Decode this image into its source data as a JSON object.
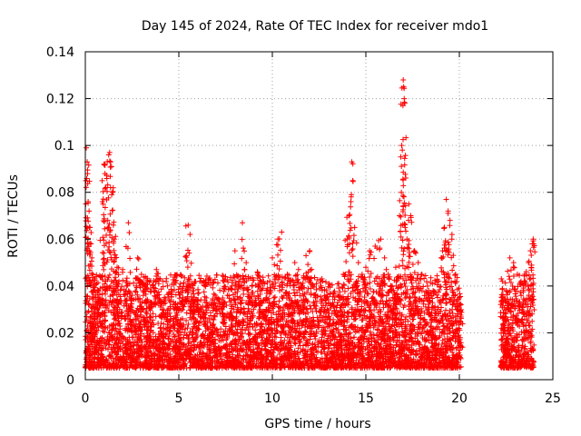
{
  "chart_data": {
    "type": "scatter",
    "title": "Day 145 of 2024, Rate Of TEC Index for receiver mdo1",
    "xlabel": "GPS time / hours",
    "ylabel": "ROTI / TECUs",
    "xlim": [
      0,
      25
    ],
    "ylim": [
      0,
      0.14
    ],
    "xticks": [
      "0",
      "5",
      "10",
      "15",
      "20",
      "25"
    ],
    "yticks": [
      "0",
      "0.02",
      "0.04",
      "0.06",
      "0.08",
      "0.1",
      "0.12",
      "0.14"
    ],
    "xtick_values": [
      0,
      5,
      10,
      15,
      20,
      25
    ],
    "ytick_values": [
      0,
      0.02,
      0.04,
      0.06,
      0.08,
      0.1,
      0.12,
      0.14
    ],
    "grid": true,
    "marker": "plus",
    "color": "#ff0000",
    "series": [
      {
        "name": "ROTI",
        "points": [
          [
            0.05,
            0.099
          ],
          [
            0.1,
            0.093
          ],
          [
            0.12,
            0.088
          ],
          [
            0.15,
            0.076
          ],
          [
            0.2,
            0.072
          ],
          [
            0.25,
            0.065
          ],
          [
            0.3,
            0.058
          ],
          [
            0.35,
            0.052
          ],
          [
            0.4,
            0.045
          ],
          [
            0.45,
            0.035
          ],
          [
            0.5,
            0.028
          ],
          [
            0.6,
            0.041
          ],
          [
            0.7,
            0.038
          ],
          [
            0.8,
            0.044
          ],
          [
            0.9,
            0.085
          ],
          [
            0.95,
            0.075
          ],
          [
            1.0,
            0.092
          ],
          [
            1.05,
            0.088
          ],
          [
            1.1,
            0.082
          ],
          [
            1.2,
            0.068
          ],
          [
            1.25,
            0.096
          ],
          [
            1.3,
            0.097
          ],
          [
            1.35,
            0.093
          ],
          [
            1.4,
            0.091
          ],
          [
            1.45,
            0.08
          ],
          [
            1.5,
            0.066
          ],
          [
            1.55,
            0.06
          ],
          [
            1.6,
            0.052
          ],
          [
            1.7,
            0.048
          ],
          [
            1.8,
            0.042
          ],
          [
            2.0,
            0.047
          ],
          [
            2.2,
            0.04
          ],
          [
            2.3,
            0.067
          ],
          [
            2.5,
            0.036
          ],
          [
            2.8,
            0.052
          ],
          [
            3.0,
            0.045
          ],
          [
            3.2,
            0.04
          ],
          [
            3.5,
            0.033
          ],
          [
            3.8,
            0.047
          ],
          [
            4.0,
            0.043
          ],
          [
            4.2,
            0.028
          ],
          [
            4.5,
            0.025
          ],
          [
            4.8,
            0.032
          ],
          [
            5.0,
            0.022
          ],
          [
            5.2,
            0.038
          ],
          [
            5.4,
            0.053
          ],
          [
            5.5,
            0.066
          ],
          [
            5.6,
            0.062
          ],
          [
            5.8,
            0.038
          ],
          [
            6.0,
            0.034
          ],
          [
            6.2,
            0.03
          ],
          [
            6.5,
            0.031
          ],
          [
            6.8,
            0.033
          ],
          [
            7.0,
            0.035
          ],
          [
            7.3,
            0.032
          ],
          [
            7.6,
            0.036
          ],
          [
            7.8,
            0.034
          ],
          [
            8.0,
            0.055
          ],
          [
            8.2,
            0.042
          ],
          [
            8.4,
            0.067
          ],
          [
            8.6,
            0.05
          ],
          [
            8.8,
            0.035
          ],
          [
            9.0,
            0.03
          ],
          [
            9.2,
            0.046
          ],
          [
            9.4,
            0.042
          ],
          [
            9.7,
            0.038
          ],
          [
            10.0,
            0.052
          ],
          [
            10.3,
            0.06
          ],
          [
            10.5,
            0.063
          ],
          [
            10.8,
            0.045
          ],
          [
            11.0,
            0.042
          ],
          [
            11.2,
            0.05
          ],
          [
            11.4,
            0.047
          ],
          [
            11.6,
            0.04
          ],
          [
            11.8,
            0.053
          ],
          [
            12.0,
            0.055
          ],
          [
            12.3,
            0.035
          ],
          [
            12.6,
            0.04
          ],
          [
            12.9,
            0.038
          ],
          [
            13.2,
            0.032
          ],
          [
            13.5,
            0.036
          ],
          [
            13.8,
            0.045
          ],
          [
            14.0,
            0.06
          ],
          [
            14.1,
            0.07
          ],
          [
            14.2,
            0.076
          ],
          [
            14.25,
            0.093
          ],
          [
            14.3,
            0.085
          ],
          [
            14.4,
            0.065
          ],
          [
            14.6,
            0.05
          ],
          [
            14.8,
            0.045
          ],
          [
            15.0,
            0.048
          ],
          [
            15.2,
            0.055
          ],
          [
            15.5,
            0.057
          ],
          [
            15.8,
            0.06
          ],
          [
            16.0,
            0.052
          ],
          [
            16.2,
            0.045
          ],
          [
            16.4,
            0.04
          ],
          [
            16.6,
            0.048
          ],
          [
            16.8,
            0.07
          ],
          [
            16.9,
            0.08
          ],
          [
            16.92,
            0.1
          ],
          [
            16.95,
            0.098
          ],
          [
            17.0,
            0.128
          ],
          [
            17.02,
            0.125
          ],
          [
            17.05,
            0.12
          ],
          [
            17.08,
            0.118
          ],
          [
            17.1,
            0.065
          ],
          [
            17.2,
            0.06
          ],
          [
            17.3,
            0.075
          ],
          [
            17.4,
            0.07
          ],
          [
            17.6,
            0.055
          ],
          [
            17.8,
            0.05
          ],
          [
            18.0,
            0.045
          ],
          [
            18.3,
            0.04
          ],
          [
            18.6,
            0.038
          ],
          [
            18.9,
            0.042
          ],
          [
            19.1,
            0.055
          ],
          [
            19.2,
            0.065
          ],
          [
            19.3,
            0.077
          ],
          [
            19.4,
            0.072
          ],
          [
            19.5,
            0.068
          ],
          [
            19.6,
            0.06
          ],
          [
            19.8,
            0.045
          ],
          [
            20.0,
            0.035
          ],
          [
            20.05,
            0.025
          ],
          [
            22.3,
            0.035
          ],
          [
            22.5,
            0.038
          ],
          [
            22.7,
            0.052
          ],
          [
            22.9,
            0.05
          ],
          [
            23.1,
            0.045
          ],
          [
            23.3,
            0.042
          ],
          [
            23.5,
            0.045
          ],
          [
            23.7,
            0.05
          ],
          [
            23.8,
            0.055
          ],
          [
            23.9,
            0.058
          ],
          [
            23.95,
            0.06
          ]
        ],
        "band_segments": [
          [
            0.0,
            20.1
          ],
          [
            22.2,
            24.0
          ]
        ],
        "band_typical_range": [
          0.005,
          0.035
        ]
      }
    ]
  }
}
